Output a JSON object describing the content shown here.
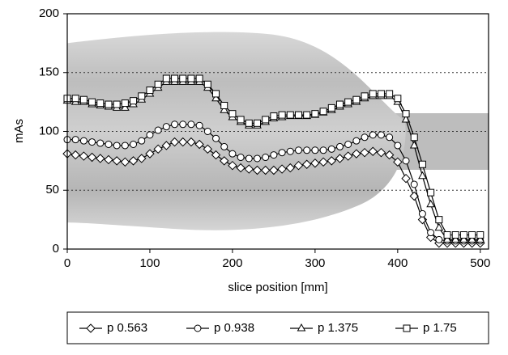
{
  "chart_data": {
    "type": "line",
    "x_label": "slice position [mm]",
    "y_label": "mAs",
    "x": [
      0,
      10,
      20,
      30,
      40,
      50,
      60,
      70,
      80,
      90,
      100,
      110,
      120,
      130,
      140,
      150,
      160,
      170,
      180,
      190,
      200,
      210,
      220,
      230,
      240,
      250,
      260,
      270,
      280,
      290,
      300,
      310,
      320,
      330,
      340,
      350,
      360,
      370,
      380,
      390,
      400,
      410,
      420,
      430,
      440,
      450,
      460,
      470,
      480,
      490,
      500
    ],
    "xlim": [
      0,
      510
    ],
    "ylim": [
      0,
      200
    ],
    "xticks": [
      0,
      100,
      200,
      300,
      400,
      500
    ],
    "yticks": [
      0,
      50,
      100,
      150,
      200
    ],
    "grid": true,
    "legend": "bottom",
    "series": [
      {
        "name": "p 0.563",
        "color": "#000000",
        "marker": "diamond",
        "values": [
          81,
          80,
          79,
          78,
          77,
          76,
          75,
          74,
          75,
          77,
          81,
          85,
          88,
          91,
          91,
          91,
          89,
          85,
          80,
          75,
          71,
          69,
          68,
          67,
          67,
          67,
          68,
          69,
          71,
          72,
          73,
          74,
          75,
          77,
          79,
          81,
          82,
          83,
          82,
          80,
          74,
          60,
          45,
          25,
          10,
          5,
          5,
          5,
          5,
          5,
          5
        ]
      },
      {
        "name": "p 0.938",
        "color": "#000000",
        "marker": "circle",
        "values": [
          93,
          93,
          92,
          91,
          90,
          89,
          88,
          88,
          89,
          92,
          97,
          101,
          104,
          106,
          106,
          106,
          105,
          100,
          94,
          87,
          81,
          78,
          77,
          77,
          78,
          80,
          82,
          83,
          84,
          84,
          84,
          84,
          85,
          87,
          89,
          92,
          95,
          97,
          97,
          95,
          88,
          75,
          55,
          30,
          14,
          8,
          7,
          7,
          7,
          7,
          7
        ]
      },
      {
        "name": "p 1.375",
        "color": "#000000",
        "marker": "triangle",
        "values": [
          126,
          125,
          125,
          123,
          122,
          121,
          120,
          120,
          123,
          127,
          132,
          137,
          142,
          142,
          142,
          142,
          142,
          137,
          128,
          118,
          112,
          108,
          105,
          105,
          108,
          111,
          112,
          113,
          113,
          113,
          114,
          116,
          118,
          121,
          123,
          125,
          128,
          130,
          130,
          130,
          125,
          110,
          88,
          62,
          38,
          18,
          8,
          8,
          8,
          8,
          8
        ]
      },
      {
        "name": "p 1.75",
        "color": "#000000",
        "marker": "square",
        "values": [
          128,
          128,
          127,
          125,
          124,
          123,
          123,
          124,
          126,
          130,
          135,
          140,
          145,
          145,
          145,
          145,
          145,
          140,
          132,
          122,
          115,
          110,
          107,
          107,
          110,
          113,
          114,
          114,
          114,
          114,
          115,
          117,
          120,
          123,
          125,
          127,
          130,
          132,
          132,
          132,
          128,
          115,
          95,
          72,
          48,
          25,
          12,
          12,
          12,
          12,
          12
        ]
      }
    ]
  }
}
